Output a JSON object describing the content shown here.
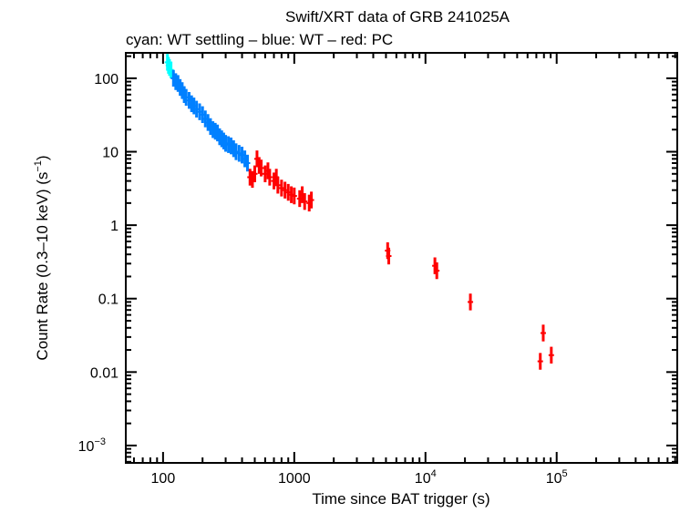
{
  "chart_data": {
    "type": "scatter",
    "title": "Swift/XRT data of GRB 241025A",
    "subtitle": "cyan: WT settling – blue: WT – red: PC",
    "xlabel": "Time since BAT trigger (s)",
    "ylabel": "Count Rate (0.3–10 keV) (s",
    "ylabel_sup": "−1",
    "ylabel_end": ")",
    "xscale": "log",
    "yscale": "log",
    "xlim": [
      52,
      830000
    ],
    "ylim": [
      0.00058,
      222
    ],
    "grid": false,
    "x_ticks": [
      {
        "value": 100,
        "label": "100"
      },
      {
        "value": 1000,
        "label": "1000"
      },
      {
        "value": 10000,
        "label": "10",
        "sup": "4"
      },
      {
        "value": 100000,
        "label": "10",
        "sup": "5"
      }
    ],
    "y_ticks": [
      {
        "value": 100,
        "label": "100"
      },
      {
        "value": 10,
        "label": "10"
      },
      {
        "value": 1,
        "label": "1"
      },
      {
        "value": 0.1,
        "label": "0.1"
      },
      {
        "value": 0.01,
        "label": "0.01"
      },
      {
        "value": 0.001,
        "label": "10",
        "sup": "−3"
      }
    ],
    "series": [
      {
        "name": "WT settling",
        "color": "#00ffff",
        "points": [
          [
            108,
            165
          ],
          [
            110,
            150
          ],
          [
            112,
            140
          ],
          [
            115,
            130
          ]
        ]
      },
      {
        "name": "WT",
        "color": "#0080ff",
        "points": [
          [
            120,
            100
          ],
          [
            125,
            90
          ],
          [
            130,
            85
          ],
          [
            135,
            75
          ],
          [
            140,
            68
          ],
          [
            145,
            60
          ],
          [
            150,
            55
          ],
          [
            158,
            50
          ],
          [
            165,
            45
          ],
          [
            172,
            42
          ],
          [
            180,
            38
          ],
          [
            190,
            35
          ],
          [
            200,
            32
          ],
          [
            210,
            28
          ],
          [
            220,
            25
          ],
          [
            230,
            22
          ],
          [
            240,
            20
          ],
          [
            250,
            19
          ],
          [
            260,
            18
          ],
          [
            270,
            16
          ],
          [
            280,
            15
          ],
          [
            290,
            14
          ],
          [
            300,
            13
          ],
          [
            315,
            12.5
          ],
          [
            330,
            12
          ],
          [
            345,
            11
          ],
          [
            360,
            10
          ],
          [
            380,
            9.5
          ],
          [
            400,
            9
          ],
          [
            420,
            8
          ],
          [
            440,
            7
          ]
        ]
      },
      {
        "name": "PC",
        "color": "#ff0000",
        "points": [
          [
            460,
            4.5
          ],
          [
            480,
            4.2
          ],
          [
            500,
            5
          ],
          [
            520,
            8
          ],
          [
            540,
            6.5
          ],
          [
            560,
            6
          ],
          [
            600,
            5
          ],
          [
            630,
            5.5
          ],
          [
            650,
            4.5
          ],
          [
            700,
            4
          ],
          [
            730,
            4.5
          ],
          [
            750,
            3.5
          ],
          [
            800,
            3.2
          ],
          [
            850,
            3
          ],
          [
            900,
            2.8
          ],
          [
            950,
            2.6
          ],
          [
            1000,
            2.5
          ],
          [
            1100,
            2.3
          ],
          [
            1150,
            2.6
          ],
          [
            1200,
            2.1
          ],
          [
            1300,
            2.0
          ],
          [
            1350,
            2.2
          ],
          [
            5150,
            0.45
          ],
          [
            5250,
            0.38
          ],
          [
            11800,
            0.28
          ],
          [
            12200,
            0.24
          ],
          [
            22000,
            0.09
          ],
          [
            75000,
            0.014
          ],
          [
            79000,
            0.034
          ],
          [
            91000,
            0.017
          ]
        ]
      }
    ]
  }
}
